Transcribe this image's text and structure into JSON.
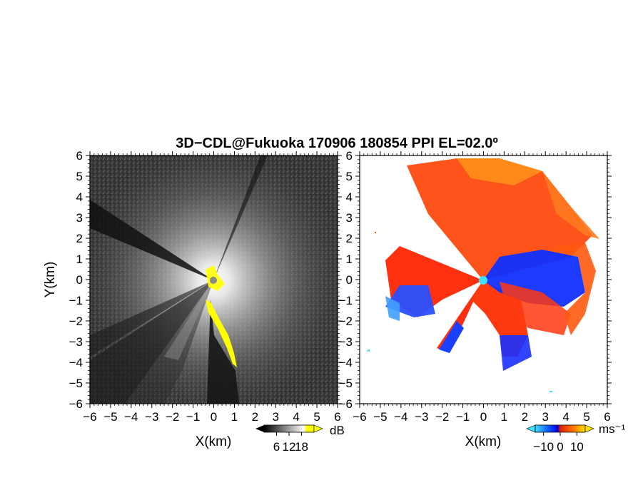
{
  "chart_data": {
    "title": "3D−CDL@Fukuoka 170906 180854 PPI EL=02.0º",
    "type": "heatmap",
    "panels": [
      {
        "id": "reflectivity",
        "xlabel": "X(km)",
        "ylabel": "Y(km)",
        "xlim": [
          -6,
          6
        ],
        "ylim": [
          -6,
          6
        ],
        "x_ticks": [
          "−6",
          "−5",
          "−4",
          "−3",
          "−2",
          "−1",
          "0",
          "1",
          "2",
          "3",
          "4",
          "5",
          "6"
        ],
        "y_ticks": [
          "−6",
          "−5",
          "−4",
          "−3",
          "−2",
          "−1",
          "0",
          "1",
          "2",
          "3",
          "4",
          "5",
          "6"
        ],
        "colorbar": {
          "unit": "dB",
          "ticks": [
            "6",
            "12",
            "18"
          ],
          "tick_values": [
            6,
            12,
            18
          ],
          "range": [
            0,
            24
          ],
          "colors": [
            "#000000",
            "#555555",
            "#9a9a9a",
            "#dddddd",
            "#ffffff",
            "#ffff00"
          ]
        }
      },
      {
        "id": "doppler_velocity",
        "xlabel": "X(km)",
        "ylabel": "",
        "xlim": [
          -6,
          6
        ],
        "ylim": [
          -6,
          6
        ],
        "x_ticks": [
          "−6",
          "−5",
          "−4",
          "−3",
          "−2",
          "−1",
          "0",
          "1",
          "2",
          "3",
          "4",
          "5",
          "6"
        ],
        "y_ticks": [
          "−6",
          "−5",
          "−4",
          "−3",
          "−2",
          "−1",
          "0",
          "1",
          "2",
          "3",
          "4",
          "5",
          "6"
        ],
        "colorbar": {
          "unit": "ms⁻¹",
          "ticks": [
            "−10",
            "0",
            "10"
          ],
          "tick_values": [
            -10,
            0,
            10
          ],
          "range": [
            -15,
            15
          ],
          "colors": [
            "#40e0ff",
            "#1060ff",
            "#0000e0",
            "#e02000",
            "#ff6a00",
            "#ffb000",
            "#ffe000"
          ]
        }
      }
    ]
  }
}
